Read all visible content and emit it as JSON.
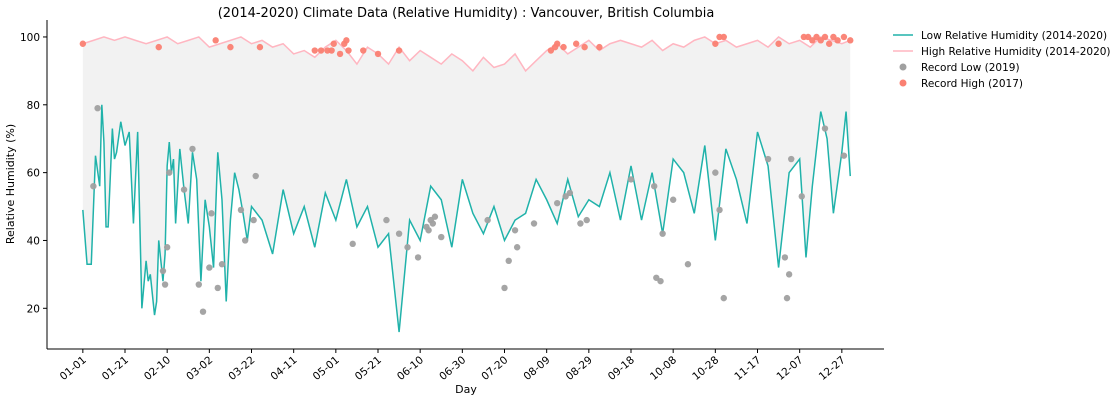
{
  "chart_data": {
    "type": "line",
    "title": "(2014-2020) Climate Data (Relative Humidity) : Vancouver, British Columbia",
    "xlabel": "Day",
    "ylabel": "Relative Humidity (%)",
    "ylim": [
      8,
      105
    ],
    "xlim": [
      -17,
      380
    ],
    "xtick_days": [
      0,
      20,
      40,
      60,
      80,
      100,
      120,
      140,
      160,
      180,
      200,
      220,
      240,
      260,
      280,
      300,
      320,
      340,
      360
    ],
    "xtick_labels": [
      "01-01",
      "01-21",
      "02-10",
      "03-02",
      "03-22",
      "04-11",
      "05-01",
      "05-21",
      "06-10",
      "06-30",
      "07-20",
      "08-09",
      "08-29",
      "09-18",
      "10-08",
      "10-28",
      "11-17",
      "12-07",
      "12-27"
    ],
    "ytick_values": [
      20,
      40,
      60,
      80,
      100
    ],
    "ytick_labels": [
      "20",
      "40",
      "60",
      "80",
      "100"
    ],
    "grid": false,
    "legend_position": "upper right, outside plot",
    "fill_between": {
      "color": "#f2f2f2"
    },
    "series": [
      {
        "name": "Low Relative Humidity (2014-2020)",
        "kind": "line",
        "color": "#20b2aa",
        "x_days": [
          0,
          2,
          4,
          6,
          8,
          9,
          10,
          11,
          12,
          14,
          15,
          16,
          18,
          20,
          22,
          24,
          26,
          28,
          30,
          31,
          32,
          34,
          35,
          36,
          37,
          38,
          39,
          40,
          41,
          42,
          43,
          44,
          46,
          48,
          50,
          52,
          54,
          56,
          58,
          60,
          62,
          64,
          66,
          68,
          70,
          72,
          74,
          76,
          78,
          80,
          85,
          90,
          95,
          100,
          105,
          110,
          115,
          120,
          125,
          130,
          135,
          140,
          145,
          150,
          155,
          160,
          165,
          170,
          175,
          180,
          185,
          190,
          195,
          200,
          205,
          210,
          215,
          220,
          225,
          230,
          235,
          240,
          245,
          250,
          255,
          260,
          265,
          270,
          275,
          280,
          285,
          290,
          295,
          300,
          305,
          310,
          315,
          320,
          325,
          330,
          335,
          340,
          343,
          346,
          350,
          353,
          356,
          360,
          362,
          364
        ],
        "values": [
          49,
          33,
          33,
          65,
          56,
          80,
          69,
          44,
          44,
          73,
          64,
          66,
          75,
          68,
          72,
          45,
          72,
          20,
          34,
          28,
          30,
          18,
          22,
          40,
          34,
          28,
          36,
          62,
          69,
          60,
          64,
          45,
          67,
          55,
          45,
          66,
          58,
          28,
          52,
          44,
          32,
          66,
          52,
          22,
          46,
          60,
          55,
          48,
          40,
          50,
          46,
          36,
          55,
          42,
          50,
          38,
          54,
          46,
          58,
          44,
          50,
          38,
          42,
          13,
          46,
          40,
          56,
          52,
          38,
          58,
          48,
          42,
          50,
          40,
          46,
          48,
          58,
          52,
          45,
          58,
          47,
          52,
          50,
          60,
          46,
          62,
          46,
          60,
          42,
          64,
          60,
          48,
          68,
          40,
          67,
          58,
          45,
          72,
          62,
          32,
          60,
          64,
          35,
          56,
          78,
          70,
          48,
          66,
          78,
          59
        ]
      },
      {
        "name": "High Relative Humidity (2014-2020)",
        "kind": "line",
        "color": "#ffb6c1",
        "x_days": [
          0,
          5,
          10,
          15,
          20,
          25,
          30,
          35,
          40,
          45,
          50,
          55,
          60,
          65,
          70,
          75,
          80,
          85,
          90,
          95,
          100,
          105,
          110,
          115,
          120,
          125,
          130,
          135,
          140,
          145,
          150,
          155,
          160,
          165,
          170,
          175,
          180,
          185,
          190,
          195,
          200,
          205,
          210,
          215,
          220,
          225,
          230,
          235,
          240,
          245,
          250,
          255,
          260,
          265,
          270,
          275,
          280,
          285,
          290,
          295,
          300,
          305,
          310,
          315,
          320,
          325,
          330,
          335,
          340,
          345,
          350,
          355,
          360,
          364
        ],
        "values": [
          98,
          99,
          100,
          99,
          100,
          99,
          98,
          99,
          100,
          98,
          99,
          100,
          97,
          98,
          99,
          100,
          98,
          99,
          97,
          98,
          95,
          96,
          94,
          97,
          99,
          96,
          92,
          97,
          95,
          92,
          97,
          93,
          96,
          94,
          92,
          95,
          93,
          90,
          94,
          91,
          92,
          95,
          90,
          93,
          96,
          98,
          95,
          97,
          99,
          96,
          98,
          99,
          98,
          97,
          99,
          96,
          98,
          97,
          99,
          100,
          98,
          99,
          97,
          98,
          99,
          97,
          100,
          98,
          99,
          97,
          100,
          99,
          98,
          99
        ]
      },
      {
        "name": "Record Low (2019)",
        "kind": "scatter",
        "color": "#a0a0a0",
        "x_days": [
          5,
          7,
          38,
          39,
          40,
          41,
          48,
          52,
          55,
          57,
          60,
          61,
          64,
          66,
          75,
          77,
          81,
          82,
          128,
          144,
          150,
          154,
          159,
          163,
          164,
          165,
          166,
          167,
          170,
          192,
          200,
          202,
          205,
          206,
          214,
          225,
          229,
          231,
          236,
          239,
          260,
          271,
          272,
          274,
          275,
          280,
          287,
          300,
          302,
          304,
          325,
          333,
          334,
          335,
          336,
          341,
          352,
          361
        ],
        "values": [
          56,
          79,
          31,
          27,
          38,
          60,
          55,
          67,
          27,
          19,
          32,
          48,
          26,
          33,
          49,
          40,
          46,
          59,
          39,
          46,
          42,
          38,
          35,
          44,
          43,
          46,
          45,
          47,
          41,
          46,
          26,
          34,
          43,
          38,
          45,
          51,
          53,
          54,
          45,
          46,
          58,
          56,
          29,
          28,
          42,
          52,
          33,
          60,
          49,
          23,
          64,
          35,
          23,
          30,
          64,
          53,
          73,
          65
        ]
      },
      {
        "name": "Record High (2017)",
        "kind": "scatter",
        "color": "#fa8072",
        "x_days": [
          0,
          36,
          63,
          70,
          84,
          110,
          113,
          116,
          118,
          119,
          122,
          124,
          125,
          126,
          133,
          140,
          150,
          222,
          224,
          225,
          228,
          234,
          238,
          245,
          300,
          302,
          304,
          330,
          342,
          344,
          346,
          348,
          350,
          352,
          354,
          356,
          358,
          361,
          364
        ],
        "values": [
          98,
          97,
          99,
          97,
          97,
          96,
          96,
          96,
          96,
          98,
          95,
          98,
          99,
          96,
          96,
          95,
          96,
          96,
          97,
          98,
          97,
          98,
          97,
          97,
          98,
          100,
          100,
          98,
          100,
          100,
          99,
          100,
          99,
          100,
          98,
          100,
          99,
          100,
          99
        ]
      }
    ]
  }
}
